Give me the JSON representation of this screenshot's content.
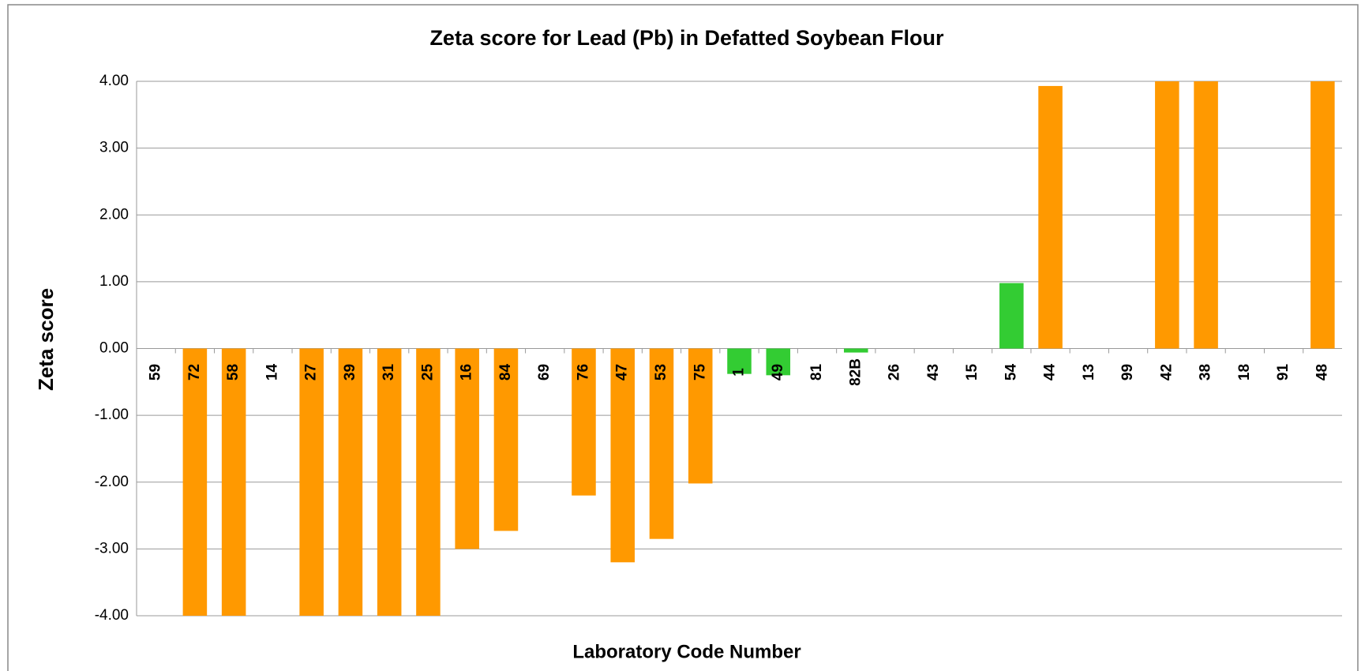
{
  "chart_data": {
    "type": "bar",
    "title": "Zeta score for Lead (Pb) in Defatted Soybean Flour",
    "xlabel": "Laboratory Code Number",
    "ylabel": "Zeta  score",
    "categories": [
      "59",
      "72",
      "58",
      "14",
      "27",
      "39",
      "31",
      "25",
      "16",
      "84",
      "69",
      "76",
      "47",
      "53",
      "75",
      "1",
      "49",
      "81",
      "82B",
      "26",
      "43",
      "15",
      "54",
      "44",
      "13",
      "99",
      "42",
      "38",
      "18",
      "91",
      "48"
    ],
    "values": [
      null,
      -4,
      -4,
      null,
      -4,
      -4,
      -4,
      -4,
      -3.0,
      -2.73,
      null,
      -2.2,
      -3.2,
      -2.85,
      -2.02,
      -0.38,
      -0.4,
      null,
      -0.06,
      null,
      null,
      null,
      0.98,
      3.93,
      null,
      null,
      4,
      4,
      null,
      null,
      4
    ],
    "colors": [
      null,
      "#ff9900",
      "#ff9900",
      null,
      "#ff9900",
      "#ff9900",
      "#ff9900",
      "#ff9900",
      "#ff9900",
      "#ff9900",
      null,
      "#ff9900",
      "#ff9900",
      "#ff9900",
      "#ff9900",
      "#33cc33",
      "#33cc33",
      null,
      "#33cc33",
      null,
      null,
      null,
      "#33cc33",
      "#ff9900",
      null,
      null,
      "#ff9900",
      "#ff9900",
      null,
      null,
      "#ff9900"
    ],
    "ylim": [
      -4,
      4
    ],
    "yticks": [
      {
        "value": -4,
        "label": "-4.00"
      },
      {
        "value": -3,
        "label": "-3.00"
      },
      {
        "value": -2,
        "label": "-2.00"
      },
      {
        "value": -1,
        "label": "-1.00"
      },
      {
        "value": 0,
        "label": "0.00"
      },
      {
        "value": 1,
        "label": "1.00"
      },
      {
        "value": 2,
        "label": "2.00"
      },
      {
        "value": 3,
        "label": "3.00"
      },
      {
        "value": 4,
        "label": "4.00"
      }
    ],
    "grid": true
  }
}
